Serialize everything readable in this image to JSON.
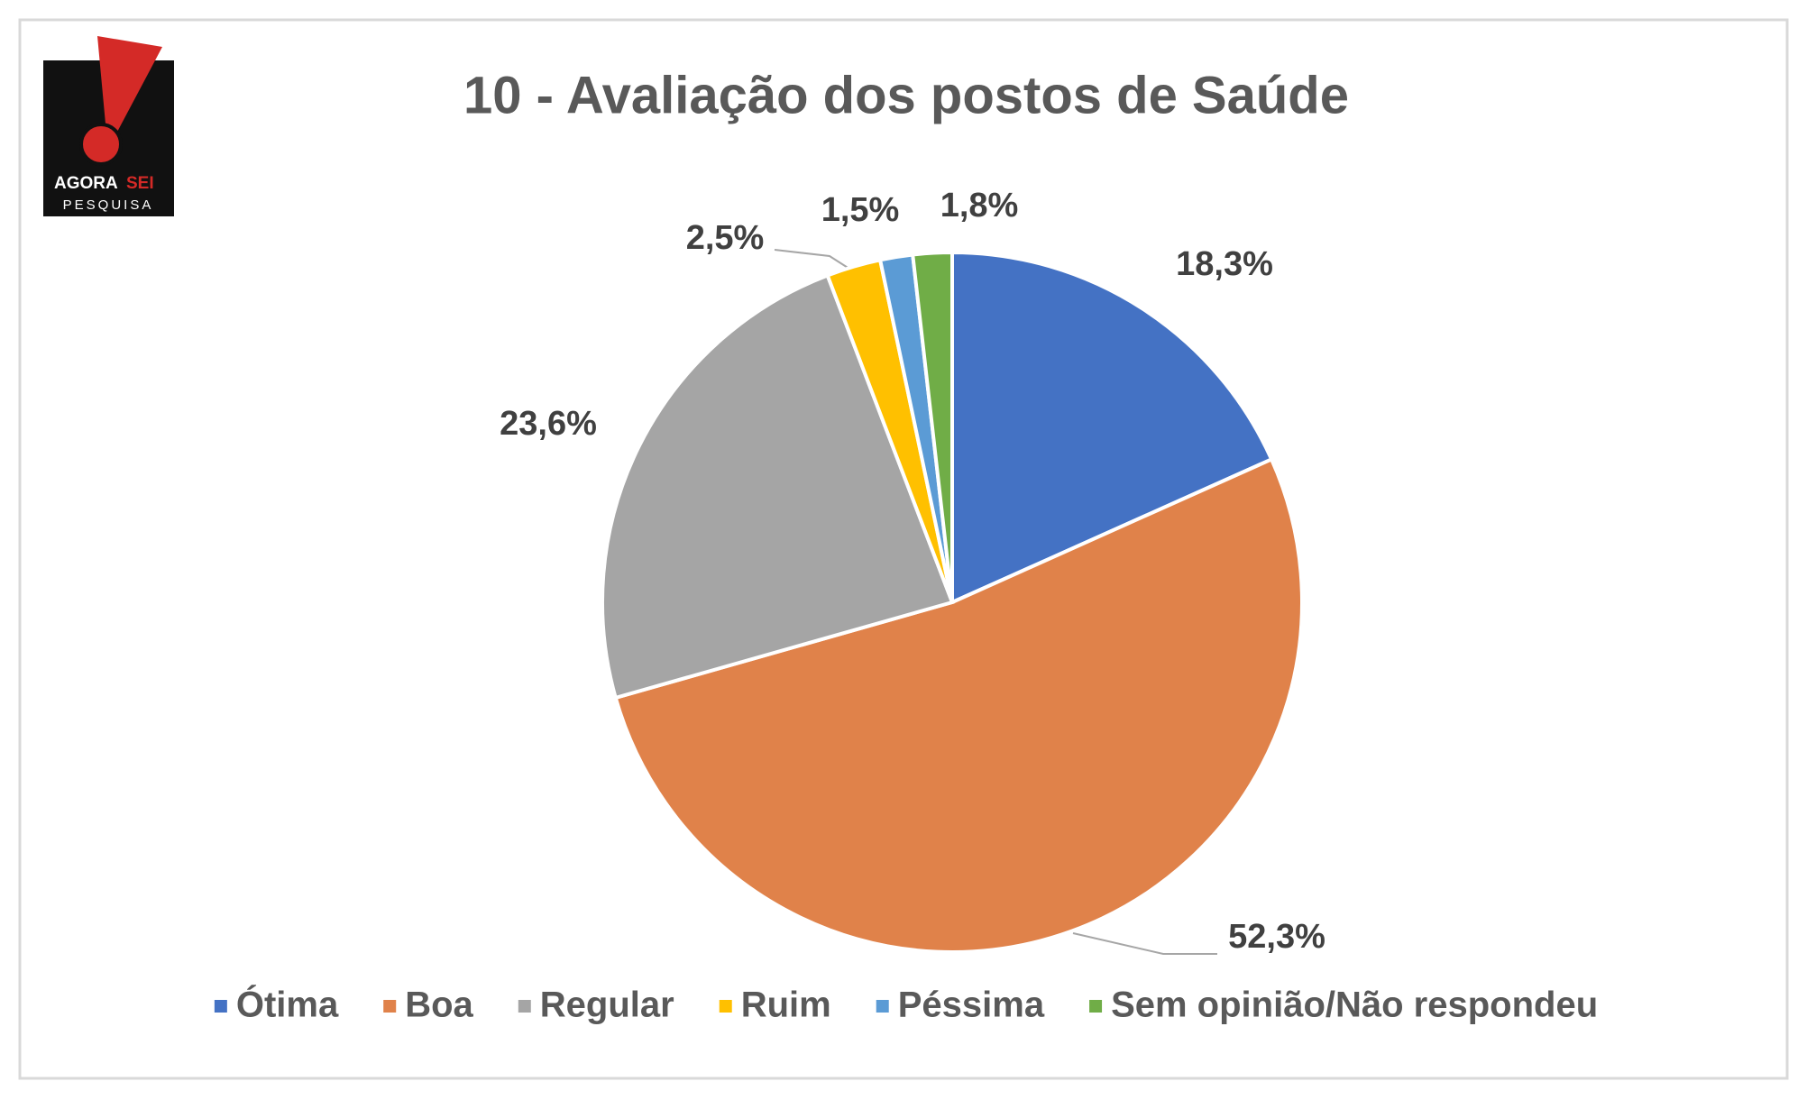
{
  "logo": {
    "name": [
      "AGORA",
      "SEI"
    ],
    "tagline": "PESQUISA"
  },
  "chart_data": {
    "type": "pie",
    "title": "10 - Avaliação dos postos de Saúde",
    "categories": [
      "Ótima",
      "Boa",
      "Regular",
      "Ruim",
      "Péssima",
      "Sem opinião/Não respondeu"
    ],
    "values": [
      18.3,
      52.3,
      23.6,
      2.5,
      1.5,
      1.8
    ],
    "value_labels": [
      "18,3%",
      "52,3%",
      "23,6%",
      "2,5%",
      "1,5%",
      "1,8%"
    ],
    "colors": [
      "#4472c4",
      "#e0824a",
      "#a5a5a5",
      "#ffc000",
      "#5b9bd5",
      "#70ad47"
    ],
    "legend": "bottom"
  }
}
